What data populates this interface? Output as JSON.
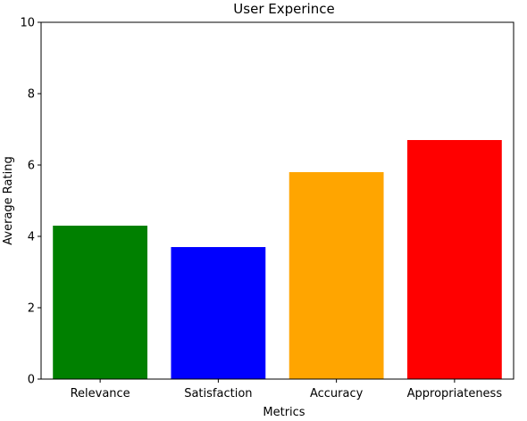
{
  "chart_data": {
    "type": "bar",
    "title": "User Experince",
    "xlabel": "Metrics",
    "ylabel": "Average Rating",
    "categories": [
      "Relevance",
      "Satisfaction",
      "Accuracy",
      "Appropriateness"
    ],
    "values": [
      4.3,
      3.7,
      5.8,
      6.7
    ],
    "colors": [
      "#008000",
      "#0000ff",
      "#ffa500",
      "#ff0000"
    ],
    "ylim": [
      0,
      10
    ],
    "yticks": [
      "0",
      "2",
      "4",
      "6",
      "8",
      "10"
    ],
    "grid": false,
    "legend": "none"
  }
}
